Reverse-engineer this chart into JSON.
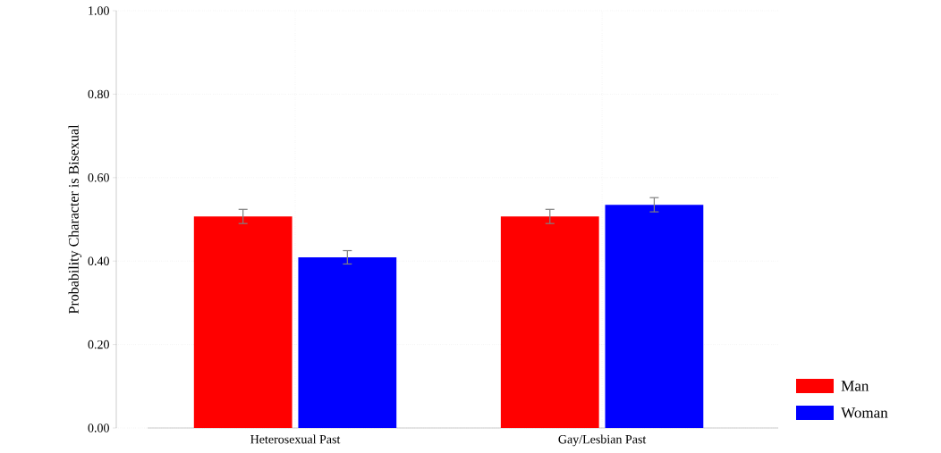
{
  "chart_data": {
    "type": "bar",
    "ylabel": "Probability Character is Bisexual",
    "categories": [
      "Heterosexual Past",
      "Gay/Lesbian Past"
    ],
    "series": [
      {
        "name": "Man",
        "color": "#ff0000",
        "values": [
          0.507,
          0.507
        ],
        "errors": [
          0.017,
          0.017
        ]
      },
      {
        "name": "Woman",
        "color": "#0000ff",
        "values": [
          0.409,
          0.535
        ],
        "errors": [
          0.016,
          0.017
        ]
      }
    ],
    "ylim": [
      0,
      1
    ],
    "yticks": [
      {
        "value": 0,
        "label": "0.00"
      },
      {
        "value": 0.2,
        "label": "0.20"
      },
      {
        "value": 0.4,
        "label": "0.40"
      },
      {
        "value": 0.6,
        "label": "0.60"
      },
      {
        "value": 0.8,
        "label": "0.80"
      },
      {
        "value": 1,
        "label": "1.00"
      }
    ],
    "grid": true,
    "legend": "bottom right"
  }
}
